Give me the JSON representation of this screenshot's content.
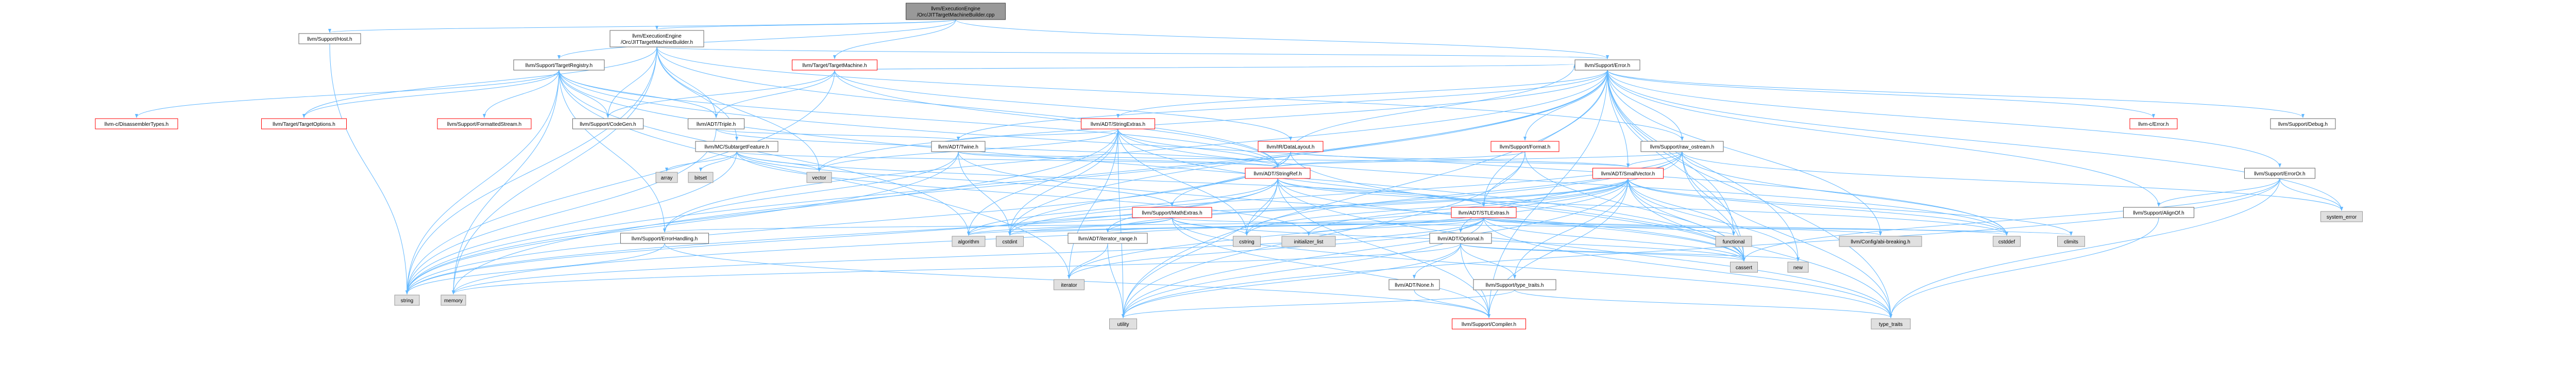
{
  "colors": {
    "root_fill": "#999999",
    "node_fill": "#ffffff",
    "node_border": "#666666",
    "ext_fill": "#e0e0e0",
    "ext_border": "#999999",
    "highlight_text": "#ff0000",
    "edge": "#63b8ff"
  },
  "nodes": [
    {
      "id": "root",
      "lines": [
        "llvm/ExecutionEngine",
        "/Orc/JITTargetMachineBuilder.cpp"
      ],
      "style": "root"
    },
    {
      "id": "jtmb_h",
      "lines": [
        "llvm/ExecutionEngine",
        "/Orc/JITTargetMachineBuilder.h"
      ],
      "style": "normal"
    },
    {
      "id": "host_h",
      "lines": [
        "llvm/Support/Host.h"
      ],
      "style": "normal"
    },
    {
      "id": "target_registry",
      "lines": [
        "llvm/Support/TargetRegistry.h"
      ],
      "style": "normal"
    },
    {
      "id": "target_machine",
      "lines": [
        "llvm/Target/TargetMachine.h"
      ],
      "style": "red"
    },
    {
      "id": "error_h",
      "lines": [
        "llvm/Support/Error.h"
      ],
      "style": "normal"
    },
    {
      "id": "c_disassembler",
      "lines": [
        "llvm-c/DisassemblerTypes.h"
      ],
      "style": "red"
    },
    {
      "id": "target_options",
      "lines": [
        "llvm/Target/TargetOptions.h"
      ],
      "style": "red"
    },
    {
      "id": "formatted_stream",
      "lines": [
        "llvm/Support/FormattedStream.h"
      ],
      "style": "red"
    },
    {
      "id": "codegen",
      "lines": [
        "llvm/Support/CodeGen.h"
      ],
      "style": "normal"
    },
    {
      "id": "triple",
      "lines": [
        "llvm/ADT/Triple.h"
      ],
      "style": "normal"
    },
    {
      "id": "string_extras",
      "lines": [
        "llvm/ADT/StringExtras.h"
      ],
      "style": "red"
    },
    {
      "id": "mc_subtarget",
      "lines": [
        "llvm/MC/SubtargetFeature.h"
      ],
      "style": "normal"
    },
    {
      "id": "twine",
      "lines": [
        "llvm/ADT/Twine.h"
      ],
      "style": "normal"
    },
    {
      "id": "data_layout",
      "lines": [
        "llvm/IR/DataLayout.h"
      ],
      "style": "red"
    },
    {
      "id": "support_format",
      "lines": [
        "llvm/Support/Format.h"
      ],
      "style": "red"
    },
    {
      "id": "raw_ostream",
      "lines": [
        "llvm/Support/raw_ostream.h"
      ],
      "style": "normal"
    },
    {
      "id": "c_error",
      "lines": [
        "llvm-c/Error.h"
      ],
      "style": "red"
    },
    {
      "id": "support_debug",
      "lines": [
        "llvm/Support/Debug.h"
      ],
      "style": "normal"
    },
    {
      "id": "string_ref",
      "lines": [
        "llvm/ADT/StringRef.h"
      ],
      "style": "red"
    },
    {
      "id": "small_vector",
      "lines": [
        "llvm/ADT/SmallVector.h"
      ],
      "style": "red"
    },
    {
      "id": "error_or",
      "lines": [
        "llvm/Support/ErrorOr.h"
      ],
      "style": "normal"
    },
    {
      "id": "math_extras",
      "lines": [
        "llvm/Support/MathExtras.h"
      ],
      "style": "red"
    },
    {
      "id": "stl_extras",
      "lines": [
        "llvm/ADT/STLExtras.h"
      ],
      "style": "red"
    },
    {
      "id": "align_of",
      "lines": [
        "llvm/Support/AlignOf.h"
      ],
      "style": "normal"
    },
    {
      "id": "error_handling",
      "lines": [
        "llvm/Support/ErrorHandling.h"
      ],
      "style": "normal"
    },
    {
      "id": "iterator_range",
      "lines": [
        "llvm/ADT/iterator_range.h"
      ],
      "style": "normal"
    },
    {
      "id": "optional",
      "lines": [
        "llvm/ADT/Optional.h"
      ],
      "style": "normal"
    },
    {
      "id": "config_abi",
      "lines": [
        "llvm/Config/abi-breaking.h"
      ],
      "style": "ext"
    },
    {
      "id": "adt_none",
      "lines": [
        "llvm/ADT/None.h"
      ],
      "style": "normal"
    },
    {
      "id": "type_traits_h",
      "lines": [
        "llvm/Support/type_traits.h"
      ],
      "style": "normal"
    },
    {
      "id": "compiler_h",
      "lines": [
        "llvm/Support/Compiler.h"
      ],
      "style": "red"
    },
    {
      "id": "std_array",
      "lines": [
        "array"
      ],
      "style": "ext"
    },
    {
      "id": "std_bitset",
      "lines": [
        "bitset"
      ],
      "style": "ext"
    },
    {
      "id": "std_vector",
      "lines": [
        "vector"
      ],
      "style": "ext"
    },
    {
      "id": "std_string",
      "lines": [
        "string"
      ],
      "style": "ext"
    },
    {
      "id": "std_memory",
      "lines": [
        "memory"
      ],
      "style": "ext"
    },
    {
      "id": "std_algorithm",
      "lines": [
        "algorithm"
      ],
      "style": "ext"
    },
    {
      "id": "std_cstdint",
      "lines": [
        "cstdint"
      ],
      "style": "ext"
    },
    {
      "id": "std_cstring",
      "lines": [
        "cstring"
      ],
      "style": "ext"
    },
    {
      "id": "std_initializer_list",
      "lines": [
        "initializer_list"
      ],
      "style": "ext"
    },
    {
      "id": "std_functional",
      "lines": [
        "functional"
      ],
      "style": "ext"
    },
    {
      "id": "std_cstddef",
      "lines": [
        "cstddef"
      ],
      "style": "ext"
    },
    {
      "id": "std_climits",
      "lines": [
        "climits"
      ],
      "style": "ext"
    },
    {
      "id": "std_cassert",
      "lines": [
        "cassert"
      ],
      "style": "ext"
    },
    {
      "id": "std_new",
      "lines": [
        "new"
      ],
      "style": "ext"
    },
    {
      "id": "std_system_error",
      "lines": [
        "system_error"
      ],
      "style": "ext"
    },
    {
      "id": "std_iterator",
      "lines": [
        "iterator"
      ],
      "style": "ext"
    },
    {
      "id": "std_utility",
      "lines": [
        "utility"
      ],
      "style": "ext"
    },
    {
      "id": "std_type_traits",
      "lines": [
        "type_traits"
      ],
      "style": "ext"
    }
  ],
  "edges": [
    [
      "root",
      "jtmb_h"
    ],
    [
      "root",
      "host_h"
    ],
    [
      "root",
      "target_registry"
    ],
    [
      "root",
      "target_machine"
    ],
    [
      "root",
      "error_h"
    ],
    [
      "host_h",
      "std_string"
    ],
    [
      "jtmb_h",
      "target_options"
    ],
    [
      "jtmb_h",
      "codegen"
    ],
    [
      "jtmb_h",
      "triple"
    ],
    [
      "jtmb_h",
      "mc_subtarget"
    ],
    [
      "jtmb_h",
      "error_h"
    ],
    [
      "jtmb_h",
      "std_memory"
    ],
    [
      "jtmb_h",
      "std_string"
    ],
    [
      "jtmb_h",
      "std_vector"
    ],
    [
      "jtmb_h",
      "string_ref"
    ],
    [
      "jtmb_h",
      "raw_ostream"
    ],
    [
      "target_registry",
      "c_disassembler"
    ],
    [
      "target_registry",
      "codegen"
    ],
    [
      "target_registry",
      "formatted_stream"
    ],
    [
      "target_registry",
      "triple"
    ],
    [
      "target_registry",
      "target_options"
    ],
    [
      "target_registry",
      "error_handling"
    ],
    [
      "target_registry",
      "std_memory"
    ],
    [
      "target_registry",
      "std_string"
    ],
    [
      "target_registry",
      "std_algorithm"
    ],
    [
      "target_registry",
      "std_cassert"
    ],
    [
      "target_registry",
      "std_iterator"
    ],
    [
      "target_registry",
      "std_cstddef"
    ],
    [
      "target_registry",
      "string_ref"
    ],
    [
      "target_machine",
      "triple"
    ],
    [
      "target_machine",
      "data_layout"
    ],
    [
      "target_machine",
      "codegen"
    ],
    [
      "target_machine",
      "error_h"
    ],
    [
      "target_machine",
      "std_string"
    ],
    [
      "target_machine",
      "string_ref"
    ],
    [
      "error_h",
      "c_error"
    ],
    [
      "error_h",
      "support_debug"
    ],
    [
      "error_h",
      "raw_ostream"
    ],
    [
      "error_h",
      "error_or"
    ],
    [
      "error_h",
      "twine"
    ],
    [
      "error_h",
      "string_extras"
    ],
    [
      "error_h",
      "format"
    ],
    [
      "error_h",
      "small_vector"
    ],
    [
      "error_h",
      "stl_extras"
    ],
    [
      "error_h",
      "align_of"
    ],
    [
      "error_h",
      "error_handling"
    ],
    [
      "error_h",
      "config_abi"
    ],
    [
      "error_h",
      "compiler_h"
    ],
    [
      "error_h",
      "std_cassert"
    ],
    [
      "error_h",
      "std_cstdint"
    ],
    [
      "error_h",
      "std_cstdlib"
    ],
    [
      "error_h",
      "std_functional"
    ],
    [
      "error_h",
      "std_memory"
    ],
    [
      "error_h",
      "std_new"
    ],
    [
      "error_h",
      "std_string"
    ],
    [
      "error_h",
      "std_system_error"
    ],
    [
      "error_h",
      "std_type_traits"
    ],
    [
      "error_h",
      "std_utility"
    ],
    [
      "error_h",
      "std_vector"
    ],
    [
      "error_h",
      "support_format"
    ],
    [
      "triple",
      "twine"
    ],
    [
      "triple",
      "string_ref"
    ],
    [
      "triple",
      "std_string"
    ],
    [
      "mc_subtarget",
      "string_ref"
    ],
    [
      "mc_subtarget",
      "math_extras"
    ],
    [
      "mc_subtarget",
      "std_array"
    ],
    [
      "mc_subtarget",
      "std_bitset"
    ],
    [
      "mc_subtarget",
      "std_initializer_list"
    ],
    [
      "mc_subtarget",
      "std_string"
    ],
    [
      "mc_subtarget",
      "std_vector"
    ],
    [
      "mc_subtarget",
      "stl_extras"
    ],
    [
      "twine",
      "small_vector"
    ],
    [
      "twine",
      "string_ref"
    ],
    [
      "twine",
      "error_handling"
    ],
    [
      "twine",
      "std_cassert"
    ],
    [
      "twine",
      "std_cstdint"
    ],
    [
      "twine",
      "std_string"
    ],
    [
      "string_extras",
      "string_ref"
    ],
    [
      "string_extras",
      "twine"
    ],
    [
      "string_extras",
      "std_cstring"
    ],
    [
      "string_extras",
      "std_cstdint"
    ],
    [
      "string_extras",
      "std_string"
    ],
    [
      "string_extras",
      "std_utility"
    ],
    [
      "string_extras",
      "std_iterator"
    ],
    [
      "string_extras",
      "std_cstddef"
    ],
    [
      "string_extras",
      "std_cassert"
    ],
    [
      "string_extras",
      "std_vector"
    ],
    [
      "string_extras",
      "std_algorithm"
    ],
    [
      "data_layout",
      "string_ref"
    ],
    [
      "data_layout",
      "small_vector"
    ],
    [
      "data_layout",
      "math_extras"
    ],
    [
      "data_layout",
      "error_h"
    ],
    [
      "data_layout",
      "std_cassert"
    ],
    [
      "data_layout",
      "std_cstdint"
    ],
    [
      "data_layout",
      "std_string"
    ],
    [
      "support_format",
      "std_cassert"
    ],
    [
      "support_format",
      "std_cstdio"
    ],
    [
      "support_format",
      "std_tuple"
    ],
    [
      "support_format",
      "std_utility"
    ],
    [
      "support_format",
      "stl_extras"
    ],
    [
      "support_format",
      "string_ref"
    ],
    [
      "raw_ostream",
      "string_ref"
    ],
    [
      "raw_ostream",
      "optional"
    ],
    [
      "raw_ostream",
      "std_cassert"
    ],
    [
      "raw_ostream",
      "std_cstddef"
    ],
    [
      "raw_ostream",
      "std_cstdint"
    ],
    [
      "raw_ostream",
      "std_cstring"
    ],
    [
      "raw_ostream",
      "std_string"
    ],
    [
      "raw_ostream",
      "std_system_error"
    ],
    [
      "raw_ostream",
      "std_type_traits"
    ],
    [
      "raw_ostream",
      "small_vector"
    ],
    [
      "string_ref",
      "stl_extras"
    ],
    [
      "string_ref",
      "iterator_range"
    ],
    [
      "string_ref",
      "compiler_h"
    ],
    [
      "string_ref",
      "std_algorithm"
    ],
    [
      "string_ref",
      "std_cassert"
    ],
    [
      "string_ref",
      "std_cstddef"
    ],
    [
      "string_ref",
      "std_cstring"
    ],
    [
      "string_ref",
      "std_limits"
    ],
    [
      "string_ref",
      "std_string"
    ],
    [
      "string_ref",
      "std_type_traits"
    ],
    [
      "string_ref",
      "std_utility"
    ],
    [
      "small_vector",
      "iterator_range"
    ],
    [
      "small_vector",
      "compiler_h"
    ],
    [
      "small_vector",
      "std_algorithm"
    ],
    [
      "small_vector",
      "std_cassert"
    ],
    [
      "small_vector",
      "std_cstddef"
    ],
    [
      "small_vector",
      "std_cstdlib"
    ],
    [
      "small_vector",
      "std_cstring"
    ],
    [
      "small_vector",
      "std_functional"
    ],
    [
      "small_vector",
      "std_initializer_list"
    ],
    [
      "small_vector",
      "std_iterator"
    ],
    [
      "small_vector",
      "std_limits"
    ],
    [
      "small_vector",
      "std_memory"
    ],
    [
      "small_vector",
      "std_new"
    ],
    [
      "small_vector",
      "std_type_traits"
    ],
    [
      "small_vector",
      "std_utility"
    ],
    [
      "small_vector",
      "std_climits"
    ],
    [
      "small_vector",
      "type_traits_h"
    ],
    [
      "error_or",
      "align_of"
    ],
    [
      "error_or",
      "std_cassert"
    ],
    [
      "error_or",
      "std_system_error"
    ],
    [
      "error_or",
      "std_type_traits"
    ],
    [
      "error_or",
      "std_utility"
    ],
    [
      "math_extras",
      "compiler_h"
    ],
    [
      "math_extras",
      "std_cassert"
    ],
    [
      "math_extras",
      "std_climits"
    ],
    [
      "math_extras",
      "std_cstdint"
    ],
    [
      "math_extras",
      "std_cstring"
    ],
    [
      "math_extras",
      "std_limits"
    ],
    [
      "math_extras",
      "std_type_traits"
    ],
    [
      "math_extras",
      "std_algorithm"
    ],
    [
      "stl_extras",
      "optional"
    ],
    [
      "stl_extras",
      "iterator_range"
    ],
    [
      "stl_extras",
      "config_abi"
    ],
    [
      "stl_extras",
      "error_handling"
    ],
    [
      "stl_extras",
      "std_algorithm"
    ],
    [
      "stl_extras",
      "std_cassert"
    ],
    [
      "stl_extras",
      "std_cstddef"
    ],
    [
      "stl_extras",
      "std_cstdint"
    ],
    [
      "stl_extras",
      "std_cstdlib"
    ],
    [
      "stl_extras",
      "std_functional"
    ],
    [
      "stl_extras",
      "std_initializer_list"
    ],
    [
      "stl_extras",
      "std_iterator"
    ],
    [
      "stl_extras",
      "std_limits"
    ],
    [
      "stl_extras",
      "std_memory"
    ],
    [
      "stl_extras",
      "std_tuple"
    ],
    [
      "stl_extras",
      "std_type_traits"
    ],
    [
      "stl_extras",
      "std_utility"
    ],
    [
      "align_of",
      "std_type_traits"
    ],
    [
      "error_handling",
      "compiler_h"
    ],
    [
      "error_handling",
      "std_string"
    ],
    [
      "iterator_range",
      "std_utility"
    ],
    [
      "iterator_range",
      "std_iterator"
    ],
    [
      "optional",
      "adt_none"
    ],
    [
      "optional",
      "compiler_h"
    ],
    [
      "optional",
      "type_traits_h"
    ],
    [
      "optional",
      "std_cassert"
    ],
    [
      "optional",
      "std_memory"
    ],
    [
      "optional",
      "std_new"
    ],
    [
      "optional",
      "std_utility"
    ],
    [
      "adt_none",
      "compiler_h"
    ],
    [
      "type_traits_h",
      "std_utility"
    ],
    [
      "type_traits_h",
      "std_type_traits"
    ]
  ]
}
